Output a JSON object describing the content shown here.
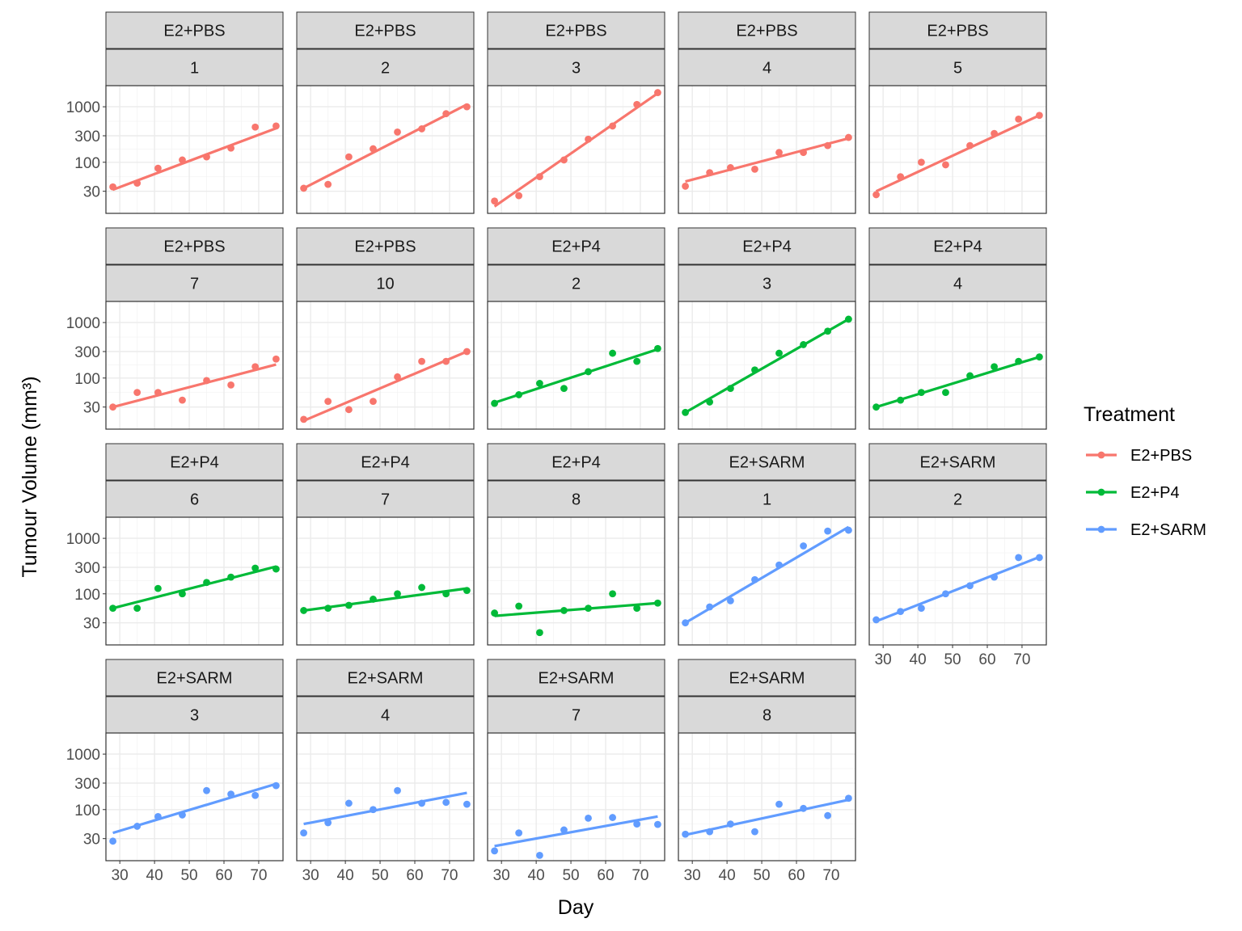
{
  "chart_data": {
    "type": "scatter",
    "xlabel": "Day",
    "ylabel": "Tumour Volume (mm³)",
    "y_scale": "log10",
    "x_ticks": [
      "30",
      "40",
      "50",
      "60",
      "70"
    ],
    "y_ticks": [
      "30",
      "100",
      "300",
      "1000"
    ],
    "xlim": [
      26,
      77
    ],
    "ylim": [
      12,
      2400
    ],
    "grid": true,
    "legend_position": "right",
    "legend": {
      "title": "Treatment",
      "entries": [
        {
          "label": "E2+PBS",
          "color": "#F8766D"
        },
        {
          "label": "E2+P4",
          "color": "#00BA38"
        },
        {
          "label": "E2+SARM",
          "color": "#619CFF"
        }
      ]
    },
    "days": [
      28,
      35,
      41,
      48,
      55,
      62,
      69,
      75
    ],
    "panels": [
      {
        "treatment": "E2+PBS",
        "id": "1",
        "y": [
          36,
          42,
          78,
          110,
          125,
          180,
          430,
          450
        ],
        "fit": [
          32,
          410
        ]
      },
      {
        "treatment": "E2+PBS",
        "id": "2",
        "y": [
          34,
          40,
          125,
          175,
          350,
          400,
          750,
          1000
        ],
        "fit": [
          34,
          1100
        ]
      },
      {
        "treatment": "E2+PBS",
        "id": "3",
        "y": [
          20,
          25,
          55,
          110,
          260,
          450,
          1100,
          1800
        ],
        "fit": [
          16,
          1750
        ]
      },
      {
        "treatment": "E2+PBS",
        "id": "4",
        "y": [
          37,
          65,
          80,
          75,
          150,
          150,
          200,
          280
        ],
        "fit": [
          45,
          270
        ]
      },
      {
        "treatment": "E2+PBS",
        "id": "5",
        "y": [
          26,
          55,
          100,
          90,
          200,
          330,
          600,
          700
        ],
        "fit": [
          30,
          700
        ]
      },
      {
        "treatment": "E2+PBS",
        "id": "7",
        "y": [
          30,
          55,
          55,
          40,
          90,
          75,
          160,
          220
        ],
        "fit": [
          30,
          175
        ]
      },
      {
        "treatment": "E2+PBS",
        "id": "10",
        "y": [
          18,
          38,
          27,
          38,
          105,
          200,
          200,
          300
        ],
        "fit": [
          17,
          300
        ]
      },
      {
        "treatment": "E2+P4",
        "id": "2",
        "y": [
          35,
          50,
          80,
          65,
          130,
          280,
          200,
          340
        ],
        "fit": [
          36,
          330
        ]
      },
      {
        "treatment": "E2+P4",
        "id": "3",
        "y": [
          24,
          37,
          65,
          140,
          280,
          400,
          700,
          1150
        ],
        "fit": [
          24,
          1150
        ]
      },
      {
        "treatment": "E2+P4",
        "id": "4",
        "y": [
          30,
          40,
          55,
          55,
          110,
          160,
          200,
          240
        ],
        "fit": [
          30,
          240
        ]
      },
      {
        "treatment": "E2+P4",
        "id": "6",
        "y": [
          55,
          55,
          125,
          100,
          160,
          200,
          290,
          280
        ],
        "fit": [
          55,
          310
        ]
      },
      {
        "treatment": "E2+P4",
        "id": "7",
        "y": [
          50,
          55,
          62,
          80,
          100,
          130,
          100,
          115
        ],
        "fit": [
          50,
          125
        ]
      },
      {
        "treatment": "E2+P4",
        "id": "8",
        "y": [
          45,
          60,
          20,
          50,
          55,
          100,
          55,
          68
        ],
        "fit": [
          40,
          68
        ]
      },
      {
        "treatment": "E2+SARM",
        "id": "1",
        "y": [
          30,
          58,
          75,
          180,
          330,
          730,
          1350,
          1400
        ],
        "fit": [
          30,
          1600
        ]
      },
      {
        "treatment": "E2+SARM",
        "id": "2",
        "y": [
          34,
          48,
          55,
          100,
          140,
          200,
          450,
          450
        ],
        "fit": [
          32,
          460
        ]
      },
      {
        "treatment": "E2+SARM",
        "id": "3",
        "y": [
          27,
          50,
          75,
          80,
          220,
          190,
          180,
          270
        ],
        "fit": [
          38,
          290
        ]
      },
      {
        "treatment": "E2+SARM",
        "id": "4",
        "y": [
          38,
          58,
          130,
          100,
          220,
          130,
          135,
          125
        ],
        "fit": [
          55,
          200
        ]
      },
      {
        "treatment": "E2+SARM",
        "id": "7",
        "y": [
          18,
          38,
          15,
          43,
          70,
          72,
          55,
          54
        ],
        "fit": [
          22,
          75
        ]
      },
      {
        "treatment": "E2+SARM",
        "id": "8",
        "y": [
          36,
          40,
          55,
          40,
          125,
          105,
          78,
          160
        ],
        "fit": [
          35,
          150
        ]
      }
    ]
  }
}
